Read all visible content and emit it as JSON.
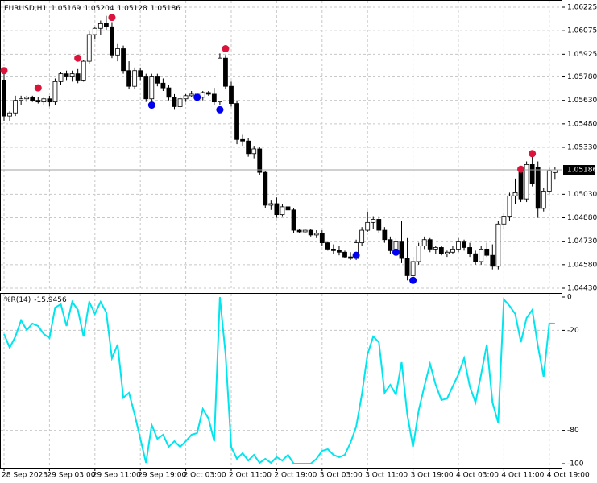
{
  "chart_data": [
    {
      "type": "candlestick",
      "symbol": "EURUSD,H1",
      "candles": [
        [
          1.0576,
          1.0581,
          1.055,
          1.0553
        ],
        [
          1.0553,
          1.0556,
          1.055,
          1.0555
        ],
        [
          1.0555,
          1.0566,
          1.0553,
          1.0563
        ],
        [
          1.0563,
          1.0566,
          1.056,
          1.0564
        ],
        [
          1.0564,
          1.0566,
          1.0562,
          1.0565
        ],
        [
          1.0565,
          1.0566,
          1.0562,
          1.0563
        ],
        [
          1.0563,
          1.0565,
          1.0561,
          1.0562
        ],
        [
          1.0562,
          1.0565,
          1.056,
          1.0564
        ],
        [
          1.0564,
          1.0566,
          1.0559,
          1.0562
        ],
        [
          1.0562,
          1.0577,
          1.056,
          1.0575
        ],
        [
          1.0575,
          1.0581,
          1.0573,
          1.058
        ],
        [
          1.058,
          1.0582,
          1.0576,
          1.0578
        ],
        [
          1.0578,
          1.0582,
          1.0575,
          1.058
        ],
        [
          1.058,
          1.0583,
          1.0574,
          1.0576
        ],
        [
          1.0576,
          1.0589,
          1.0575,
          1.0588
        ],
        [
          1.0588,
          1.0607,
          1.0586,
          1.0605
        ],
        [
          1.0605,
          1.061,
          1.0602,
          1.0609
        ],
        [
          1.0609,
          1.0614,
          1.0605,
          1.0612
        ],
        [
          1.0612,
          1.0617,
          1.0608,
          1.061
        ],
        [
          1.061,
          1.0613,
          1.059,
          1.0592
        ],
        [
          1.0592,
          1.0599,
          1.0588,
          1.0596
        ],
        [
          1.0596,
          1.0598,
          1.058,
          1.0582
        ],
        [
          1.0582,
          1.0588,
          1.057,
          1.0572
        ],
        [
          1.0572,
          1.0584,
          1.057,
          1.0582
        ],
        [
          1.0582,
          1.0584,
          1.0576,
          1.0578
        ],
        [
          1.0578,
          1.058,
          1.0562,
          1.0564
        ],
        [
          1.0564,
          1.058,
          1.0562,
          1.0578
        ],
        [
          1.0578,
          1.058,
          1.0572,
          1.0574
        ],
        [
          1.0574,
          1.0577,
          1.0569,
          1.0571
        ],
        [
          1.0571,
          1.0573,
          1.0563,
          1.0565
        ],
        [
          1.0565,
          1.0567,
          1.0557,
          1.0559
        ],
        [
          1.0559,
          1.0566,
          1.0557,
          1.0564
        ],
        [
          1.0564,
          1.0567,
          1.0562,
          1.0566
        ],
        [
          1.0566,
          1.0569,
          1.0565,
          1.0567
        ],
        [
          1.0567,
          1.0568,
          1.0564,
          1.0565
        ],
        [
          1.0565,
          1.0569,
          1.0563,
          1.0568
        ],
        [
          1.0568,
          1.0569,
          1.0566,
          1.0567
        ],
        [
          1.0567,
          1.0571,
          1.056,
          1.0562
        ],
        [
          1.0562,
          1.0593,
          1.056,
          1.059
        ],
        [
          1.059,
          1.0592,
          1.057,
          1.0572
        ],
        [
          1.0572,
          1.0575,
          1.0559,
          1.0561
        ],
        [
          1.0561,
          1.0563,
          1.0535,
          1.0538
        ],
        [
          1.0538,
          1.0541,
          1.0534,
          1.0537
        ],
        [
          1.0537,
          1.0539,
          1.0527,
          1.0529
        ],
        [
          1.0529,
          1.0534,
          1.0526,
          1.0532
        ],
        [
          1.0532,
          1.0533,
          1.0515,
          1.0517
        ],
        [
          1.0517,
          1.0518,
          1.0494,
          1.0496
        ],
        [
          1.0496,
          1.0499,
          1.0493,
          1.0497
        ],
        [
          1.0497,
          1.0501,
          1.0488,
          1.049
        ],
        [
          1.049,
          1.0497,
          1.0489,
          1.0495
        ],
        [
          1.0495,
          1.0497,
          1.0491,
          1.0493
        ],
        [
          1.0493,
          1.0494,
          1.0478,
          1.048
        ],
        [
          1.048,
          1.0481,
          1.0478,
          1.0479
        ],
        [
          1.0479,
          1.0481,
          1.0478,
          1.048
        ],
        [
          1.048,
          1.0481,
          1.0476,
          1.0477
        ],
        [
          1.0477,
          1.048,
          1.0475,
          1.0478
        ],
        [
          1.0478,
          1.048,
          1.047,
          1.0472
        ],
        [
          1.0472,
          1.0473,
          1.0467,
          1.0468
        ],
        [
          1.0468,
          1.0471,
          1.0465,
          1.0467
        ],
        [
          1.0467,
          1.047,
          1.0464,
          1.0466
        ],
        [
          1.0466,
          1.0467,
          1.0462,
          1.0463
        ],
        [
          1.0463,
          1.0466,
          1.0461,
          1.0462
        ],
        [
          1.0462,
          1.0474,
          1.0461,
          1.0472
        ],
        [
          1.0472,
          1.0482,
          1.047,
          1.048
        ],
        [
          1.048,
          1.0492,
          1.0479,
          1.0485
        ],
        [
          1.0485,
          1.0489,
          1.0481,
          1.0487
        ],
        [
          1.0487,
          1.0489,
          1.0478,
          1.048
        ],
        [
          1.048,
          1.0482,
          1.0472,
          1.0474
        ],
        [
          1.0474,
          1.0476,
          1.0465,
          1.0467
        ],
        [
          1.0467,
          1.0475,
          1.0465,
          1.0473
        ],
        [
          1.0473,
          1.0486,
          1.0459,
          1.0462
        ],
        [
          1.0462,
          1.0475,
          1.0448,
          1.0451
        ],
        [
          1.0451,
          1.0463,
          1.045,
          1.046
        ],
        [
          1.046,
          1.0472,
          1.0458,
          1.047
        ],
        [
          1.047,
          1.0476,
          1.0468,
          1.0474
        ],
        [
          1.0474,
          1.0475,
          1.0466,
          1.0468
        ],
        [
          1.0468,
          1.047,
          1.0465,
          1.0469
        ],
        [
          1.0469,
          1.047,
          1.0464,
          1.0465
        ],
        [
          1.0465,
          1.0467,
          1.0463,
          1.0466
        ],
        [
          1.0466,
          1.047,
          1.0465,
          1.0468
        ],
        [
          1.0468,
          1.0475,
          1.0466,
          1.0473
        ],
        [
          1.0473,
          1.0474,
          1.0467,
          1.0469
        ],
        [
          1.0469,
          1.0472,
          1.0463,
          1.0465
        ],
        [
          1.0465,
          1.0467,
          1.0458,
          1.046
        ],
        [
          1.046,
          1.047,
          1.0458,
          1.0468
        ],
        [
          1.0468,
          1.0472,
          1.0463,
          1.0464
        ],
        [
          1.0464,
          1.0471,
          1.0455,
          1.0457
        ],
        [
          1.0457,
          1.0486,
          1.0455,
          1.0484
        ],
        [
          1.0484,
          1.0491,
          1.0481,
          1.0489
        ],
        [
          1.0489,
          1.0504,
          1.0486,
          1.0502
        ],
        [
          1.0502,
          1.0513,
          1.0497,
          1.0504
        ],
        [
          1.0518,
          1.0521,
          1.0498,
          1.05
        ],
        [
          1.05,
          1.0524,
          1.0498,
          1.0522
        ],
        [
          1.0522,
          1.0528,
          1.0508,
          1.051
        ],
        [
          1.052,
          1.0524,
          1.0488,
          1.0494
        ],
        [
          1.0494,
          1.0507,
          1.0492,
          1.0505
        ],
        [
          1.0505,
          1.052,
          1.0503,
          1.0518
        ],
        [
          1.05169,
          1.05204,
          1.05128,
          1.05186
        ]
      ],
      "up_fractals": [
        {
          "x": 0,
          "value": 1.0582
        },
        {
          "x": 6,
          "value": 1.0571
        },
        {
          "x": 13,
          "value": 1.059
        },
        {
          "x": 19,
          "value": 1.0616
        },
        {
          "x": 39,
          "value": 1.0596
        },
        {
          "x": 91,
          "value": 1.0519
        },
        {
          "x": 93,
          "value": 1.0529
        }
      ],
      "down_fractals": [
        {
          "x": 26,
          "value": 1.056
        },
        {
          "x": 34,
          "value": 1.0565
        },
        {
          "x": 38,
          "value": 1.0557
        },
        {
          "x": 62,
          "value": 1.0464
        },
        {
          "x": 69,
          "value": 1.0466
        },
        {
          "x": 72,
          "value": 1.0448
        }
      ],
      "ylim": [
        1.0443,
        1.06225
      ],
      "yticks": [
        1.06225,
        1.06075,
        1.05925,
        {
          "value": 1.0578,
          "label": "1.05780"
        },
        {
          "value": 1.0563,
          "label": "1.05630"
        },
        {
          "value": 1.0548,
          "label": "1.05480"
        },
        {
          "value": 1.0533,
          "label": "1.05330"
        },
        {
          "value": 1.0503,
          "label": "1.05030"
        },
        {
          "value": 1.0488,
          "label": "1.04880"
        },
        {
          "value": 1.0473,
          "label": "1.04730"
        },
        {
          "value": 1.0458,
          "label": "1.04580"
        },
        {
          "value": 1.0443,
          "label": "1.04430"
        }
      ],
      "grid": true,
      "bull_color": "#ffffff",
      "bear_color": "#000000",
      "up_fractal_color": "#dc143c",
      "down_fractal_color": "#0000ee"
    },
    {
      "type": "line",
      "title": "%R(14)",
      "color": "#00e5ee",
      "values": [
        -22.2,
        -30.4,
        -23.7,
        -14.0,
        -19.8,
        -15.9,
        -17.4,
        -22.2,
        -24.6,
        -6.3,
        -4.3,
        -17.4,
        -2.9,
        -7.7,
        -23.7,
        -2.9,
        -10.1,
        -2.9,
        -9.2,
        -36.7,
        -28.5,
        -60.4,
        -57.5,
        -70.5,
        -85.0,
        -99.5,
        -76.8,
        -85.0,
        -82.6,
        -89.9,
        -86.5,
        -89.9,
        -86.5,
        -82.6,
        -81.6,
        -67.1,
        -72.9,
        -86.5,
        0,
        -34.3,
        -89.9,
        -97.1,
        -93.7,
        -98.1,
        -94.7,
        -99.5,
        -97.1,
        -99.5,
        -96.1,
        -98.1,
        -94.7,
        -100,
        -100,
        -100,
        -100,
        -97.1,
        -92.3,
        -91.3,
        -94.7,
        -96.1,
        -94.7,
        -87.4,
        -77.8,
        -58.5,
        -34.3,
        -23.7,
        -27.1,
        -57.5,
        -52.7,
        -58.5,
        -39.1,
        -70.5,
        -89.9,
        -68.1,
        -53.6,
        -40.1,
        -52.7,
        -61.8,
        -60.9,
        -53.6,
        -46.4,
        -36.7,
        -53.6,
        -63.3,
        -46.4,
        -28.5,
        -63.3,
        -75.4,
        -1.4,
        -5.3,
        -10.1,
        -27.1,
        -12.6,
        -7.7,
        -29.5,
        -47.8,
        -15.9,
        -15.9456
      ],
      "ylim": [
        -100,
        0
      ],
      "yticks": [
        0,
        -20,
        -80,
        -100
      ],
      "grid": true,
      "xticks": [
        {
          "value": 0,
          "label": "28 Sep 2023"
        },
        {
          "value": 8,
          "label": "29 Sep 03:00"
        },
        {
          "value": 16,
          "label": "29 Sep 11:00"
        },
        {
          "value": 24,
          "label": "29 Sep 19:00"
        },
        {
          "value": 32,
          "label": "2 Oct 03:00"
        },
        {
          "value": 40,
          "label": "2 Oct 11:00"
        },
        {
          "value": 48,
          "label": "2 Oct 19:00"
        },
        {
          "value": 56,
          "label": "3 Oct 03:00"
        },
        {
          "value": 64,
          "label": "3 Oct 11:00"
        },
        {
          "value": 72,
          "label": "3 Oct 19:00"
        },
        {
          "value": 80,
          "label": "4 Oct 03:00"
        },
        {
          "value": 88,
          "label": "4 Oct 11:00"
        },
        {
          "value": 96,
          "label": "4 Oct 19:00"
        }
      ]
    }
  ]
}
